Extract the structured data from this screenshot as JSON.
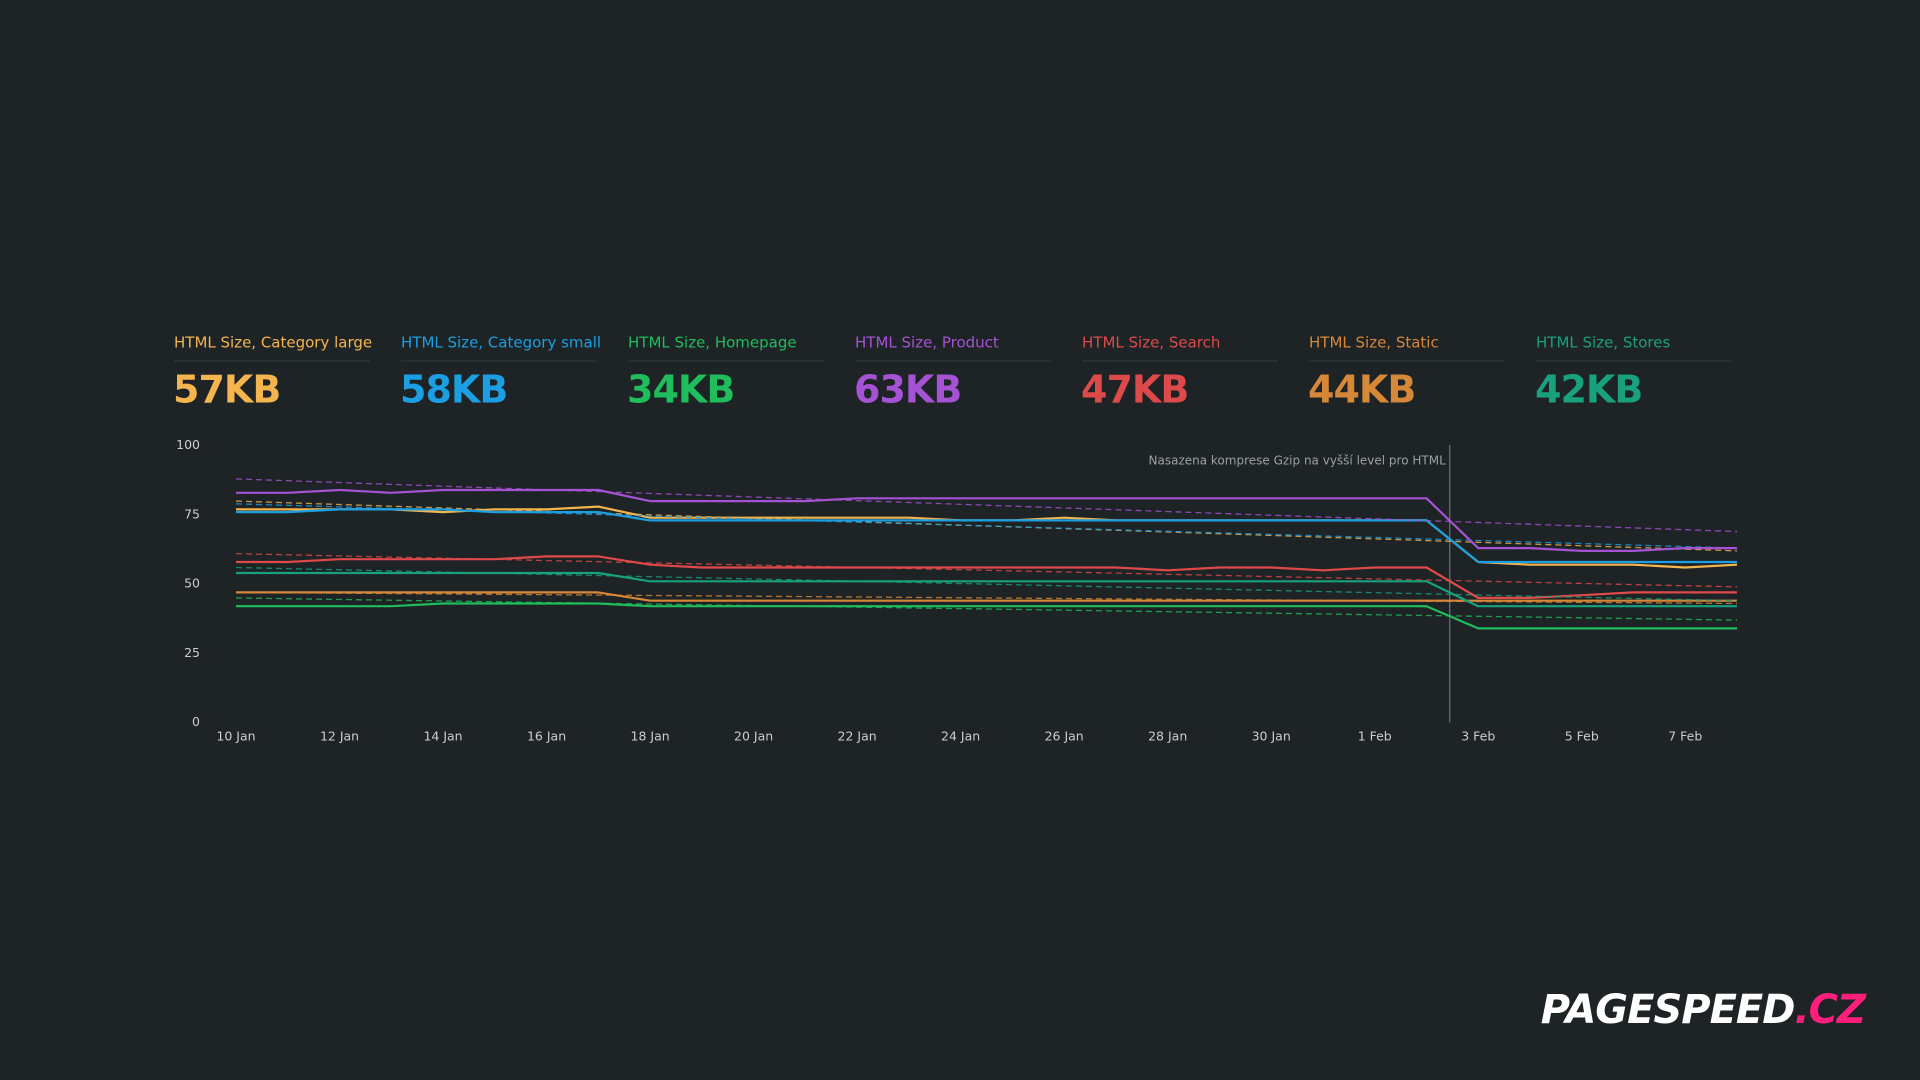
{
  "chart_data": {
    "type": "line",
    "categories": [
      "10 Jan",
      null,
      "12 Jan",
      null,
      "14 Jan",
      null,
      "16 Jan",
      null,
      "18 Jan",
      null,
      "20 Jan",
      null,
      "22 Jan",
      null,
      "24 Jan",
      null,
      "26 Jan",
      null,
      "28 Jan",
      null,
      "30 Jan",
      null,
      "1 Feb",
      null,
      "3 Feb",
      null,
      "5 Feb",
      null,
      "7 Feb",
      null
    ],
    "ylim": [
      0,
      100
    ],
    "yticks": [
      0,
      25,
      50,
      75,
      100
    ],
    "grid": false,
    "annotation": {
      "text": "Nasazena komprese Gzip na vyšší level pro HTML",
      "at": 23.45
    },
    "series": [
      {
        "name": "HTML Size, Category large",
        "headline": "57KB",
        "color": "#f4b54f",
        "values": [
          77,
          77,
          77,
          77,
          76,
          77,
          77,
          78,
          74,
          74,
          74,
          74,
          74,
          74,
          73,
          73,
          74,
          73,
          73,
          73,
          73,
          73,
          73,
          73,
          58,
          57,
          57,
          57,
          56,
          57
        ],
        "trend": [
          80,
          62
        ]
      },
      {
        "name": "HTML Size, Category small",
        "headline": "58KB",
        "color": "#1c9fe2",
        "values": [
          76,
          76,
          77,
          77,
          77,
          76,
          76,
          76,
          73,
          73,
          73,
          73,
          73,
          73,
          73,
          73,
          73,
          73,
          73,
          73,
          73,
          73,
          73,
          73,
          58,
          58,
          58,
          58,
          58,
          58
        ],
        "trend": [
          79,
          63
        ]
      },
      {
        "name": "HTML Size, Homepage",
        "headline": "34KB",
        "color": "#1fbd5b",
        "values": [
          42,
          42,
          42,
          42,
          43,
          43,
          43,
          43,
          42,
          42,
          42,
          42,
          42,
          42,
          42,
          42,
          42,
          42,
          42,
          42,
          42,
          42,
          42,
          42,
          34,
          34,
          34,
          34,
          34,
          34
        ],
        "trend": [
          45,
          37
        ]
      },
      {
        "name": "HTML Size, Product",
        "headline": "63KB",
        "color": "#a553d4",
        "values": [
          83,
          83,
          84,
          83,
          84,
          84,
          84,
          84,
          80,
          80,
          80,
          80,
          81,
          81,
          81,
          81,
          81,
          81,
          81,
          81,
          81,
          81,
          81,
          81,
          63,
          63,
          62,
          62,
          63,
          63
        ],
        "trend": [
          88,
          69
        ]
      },
      {
        "name": "HTML Size, Search",
        "headline": "47KB",
        "color": "#de4a4a",
        "values": [
          58,
          58,
          59,
          59,
          59,
          59,
          60,
          60,
          57,
          56,
          56,
          56,
          56,
          56,
          56,
          56,
          56,
          56,
          55,
          56,
          56,
          55,
          56,
          56,
          45,
          45,
          46,
          47,
          47,
          47
        ],
        "trend": [
          61,
          49
        ]
      },
      {
        "name": "HTML Size, Static",
        "headline": "44KB",
        "color": "#d68838",
        "values": [
          47,
          47,
          47,
          47,
          47,
          47,
          47,
          47,
          44,
          44,
          44,
          44,
          44,
          44,
          44,
          44,
          44,
          44,
          44,
          44,
          44,
          44,
          44,
          44,
          44,
          44,
          44,
          44,
          44,
          44
        ],
        "trend": [
          47,
          43
        ]
      },
      {
        "name": "HTML Size, Stores",
        "headline": "42KB",
        "color": "#19a07c",
        "values": [
          54,
          54,
          54,
          54,
          54,
          54,
          54,
          54,
          51,
          51,
          51,
          51,
          51,
          51,
          51,
          51,
          51,
          51,
          51,
          51,
          51,
          51,
          51,
          51,
          42,
          42,
          42,
          42,
          42,
          42
        ],
        "trend": [
          56,
          44
        ]
      }
    ]
  },
  "brand": {
    "main": "PAGESPEED",
    "suffix": ".CZ"
  }
}
